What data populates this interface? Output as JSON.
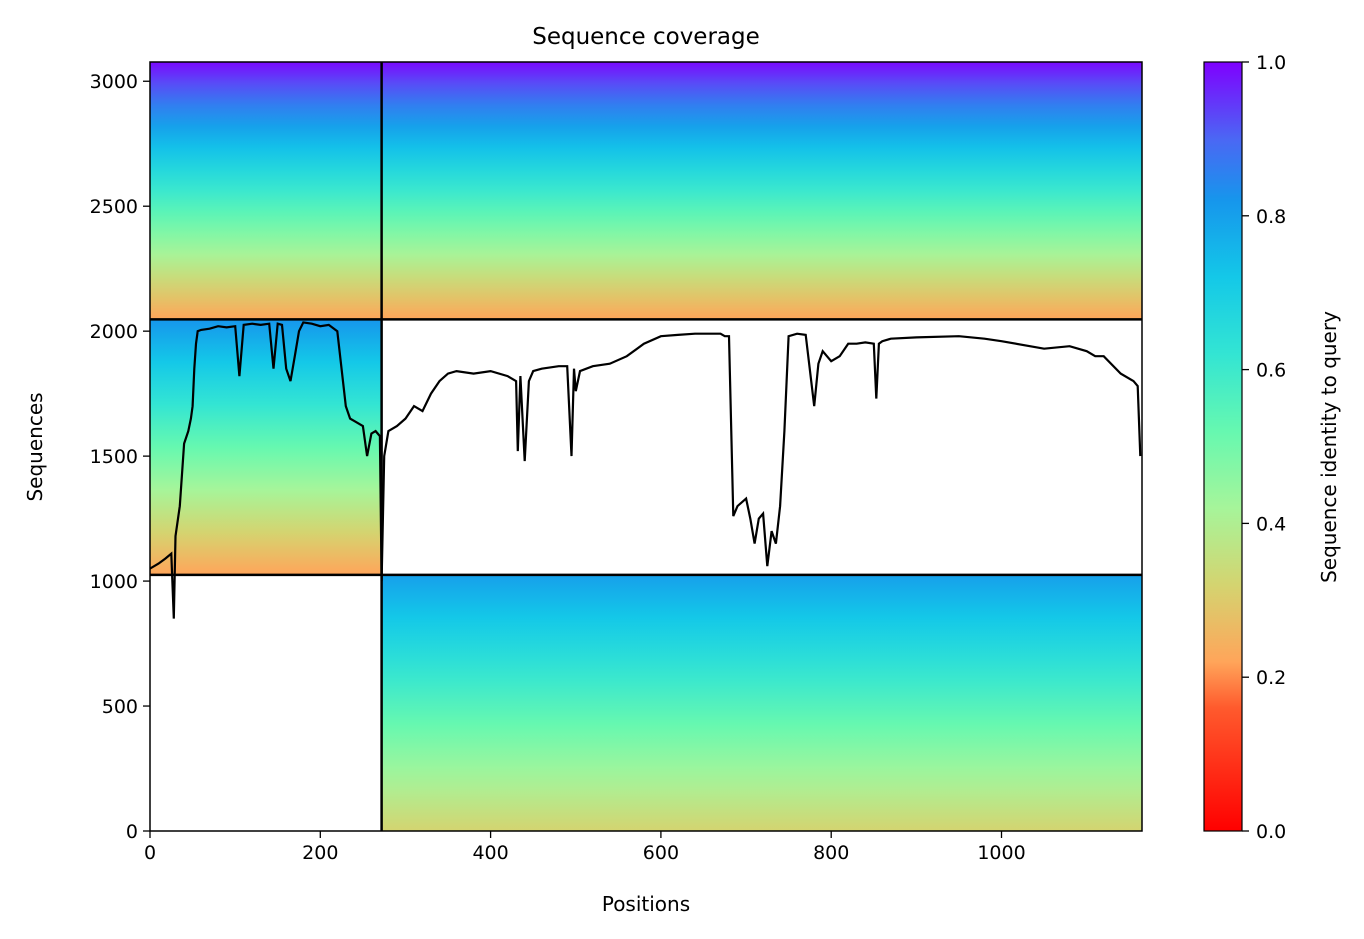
{
  "chart_data": {
    "type": "heatmap",
    "title": "Sequence coverage",
    "xlabel": "Positions",
    "ylabel": "Sequences",
    "xlim": [
      0,
      1165
    ],
    "ylim": [
      0,
      3077
    ],
    "x_ticks": [
      0,
      200,
      400,
      600,
      800,
      1000
    ],
    "y_ticks": [
      0,
      500,
      1000,
      1500,
      2000,
      2500,
      3000
    ],
    "colorbar": {
      "label": "Sequence identity to query",
      "range": [
        0.0,
        1.0
      ],
      "ticks": [
        0.0,
        0.2,
        0.4,
        0.6,
        0.8,
        1.0
      ],
      "colormap": "rainbow_r"
    },
    "chain_boundaries": {
      "x": [
        272
      ],
      "y": [
        1025,
        2047
      ]
    },
    "blocks": [
      {
        "x_range": [
          0,
          272
        ],
        "y_range": [
          2047,
          3077
        ],
        "identity_top": 0.99,
        "identity_bottom": 0.22
      },
      {
        "x_range": [
          272,
          1165
        ],
        "y_range": [
          2047,
          3077
        ],
        "identity_top": 0.99,
        "identity_bottom": 0.22
      },
      {
        "x_range": [
          0,
          272
        ],
        "y_range": [
          1025,
          2047
        ],
        "identity_top": 0.82,
        "identity_bottom": 0.22
      },
      {
        "x_range": [
          272,
          1165
        ],
        "y_range": [
          0,
          1025
        ],
        "identity_top": 0.8,
        "identity_bottom": 0.32
      }
    ],
    "coverage_line": {
      "x": [
        0,
        10,
        18,
        25,
        28,
        30,
        35,
        40,
        45,
        48,
        50,
        52,
        54,
        56,
        60,
        70,
        80,
        90,
        100,
        105,
        110,
        120,
        130,
        140,
        145,
        150,
        155,
        160,
        165,
        170,
        175,
        180,
        190,
        200,
        210,
        220,
        230,
        235,
        240,
        250,
        255,
        260,
        265,
        270,
        272,
        275,
        280,
        290,
        300,
        310,
        320,
        330,
        340,
        350,
        360,
        380,
        400,
        420,
        430,
        432,
        435,
        440,
        445,
        450,
        460,
        480,
        490,
        495,
        498,
        500,
        505,
        520,
        540,
        560,
        580,
        600,
        620,
        640,
        660,
        670,
        675,
        680,
        685,
        690,
        700,
        705,
        710,
        715,
        720,
        725,
        730,
        735,
        740,
        745,
        750,
        760,
        770,
        780,
        785,
        790,
        800,
        810,
        820,
        830,
        840,
        850,
        853,
        856,
        860,
        870,
        900,
        950,
        980,
        1000,
        1050,
        1080,
        1100,
        1110,
        1120,
        1140,
        1155,
        1160,
        1163
      ],
      "y": [
        1050,
        1070,
        1090,
        1110,
        850,
        1180,
        1300,
        1550,
        1600,
        1650,
        1700,
        1850,
        1950,
        2000,
        2005,
        2010,
        2020,
        2015,
        2020,
        1820,
        2025,
        2030,
        2025,
        2030,
        1850,
        2030,
        2025,
        1850,
        1800,
        1900,
        2000,
        2035,
        2030,
        2020,
        2025,
        2000,
        1700,
        1650,
        1640,
        1620,
        1500,
        1590,
        1600,
        1580,
        1000,
        1500,
        1600,
        1620,
        1650,
        1700,
        1680,
        1750,
        1800,
        1830,
        1840,
        1830,
        1840,
        1820,
        1800,
        1520,
        1820,
        1480,
        1800,
        1840,
        1850,
        1860,
        1860,
        1500,
        1850,
        1760,
        1840,
        1860,
        1870,
        1900,
        1950,
        1980,
        1985,
        1990,
        1990,
        1990,
        1980,
        1980,
        1260,
        1300,
        1330,
        1250,
        1150,
        1250,
        1270,
        1060,
        1200,
        1150,
        1300,
        1600,
        1980,
        1990,
        1985,
        1700,
        1870,
        1920,
        1880,
        1900,
        1950,
        1950,
        1955,
        1950,
        1730,
        1950,
        1960,
        1970,
        1975,
        1980,
        1970,
        1960,
        1930,
        1940,
        1920,
        1900,
        1900,
        1830,
        1800,
        1780,
        1500
      ]
    }
  }
}
